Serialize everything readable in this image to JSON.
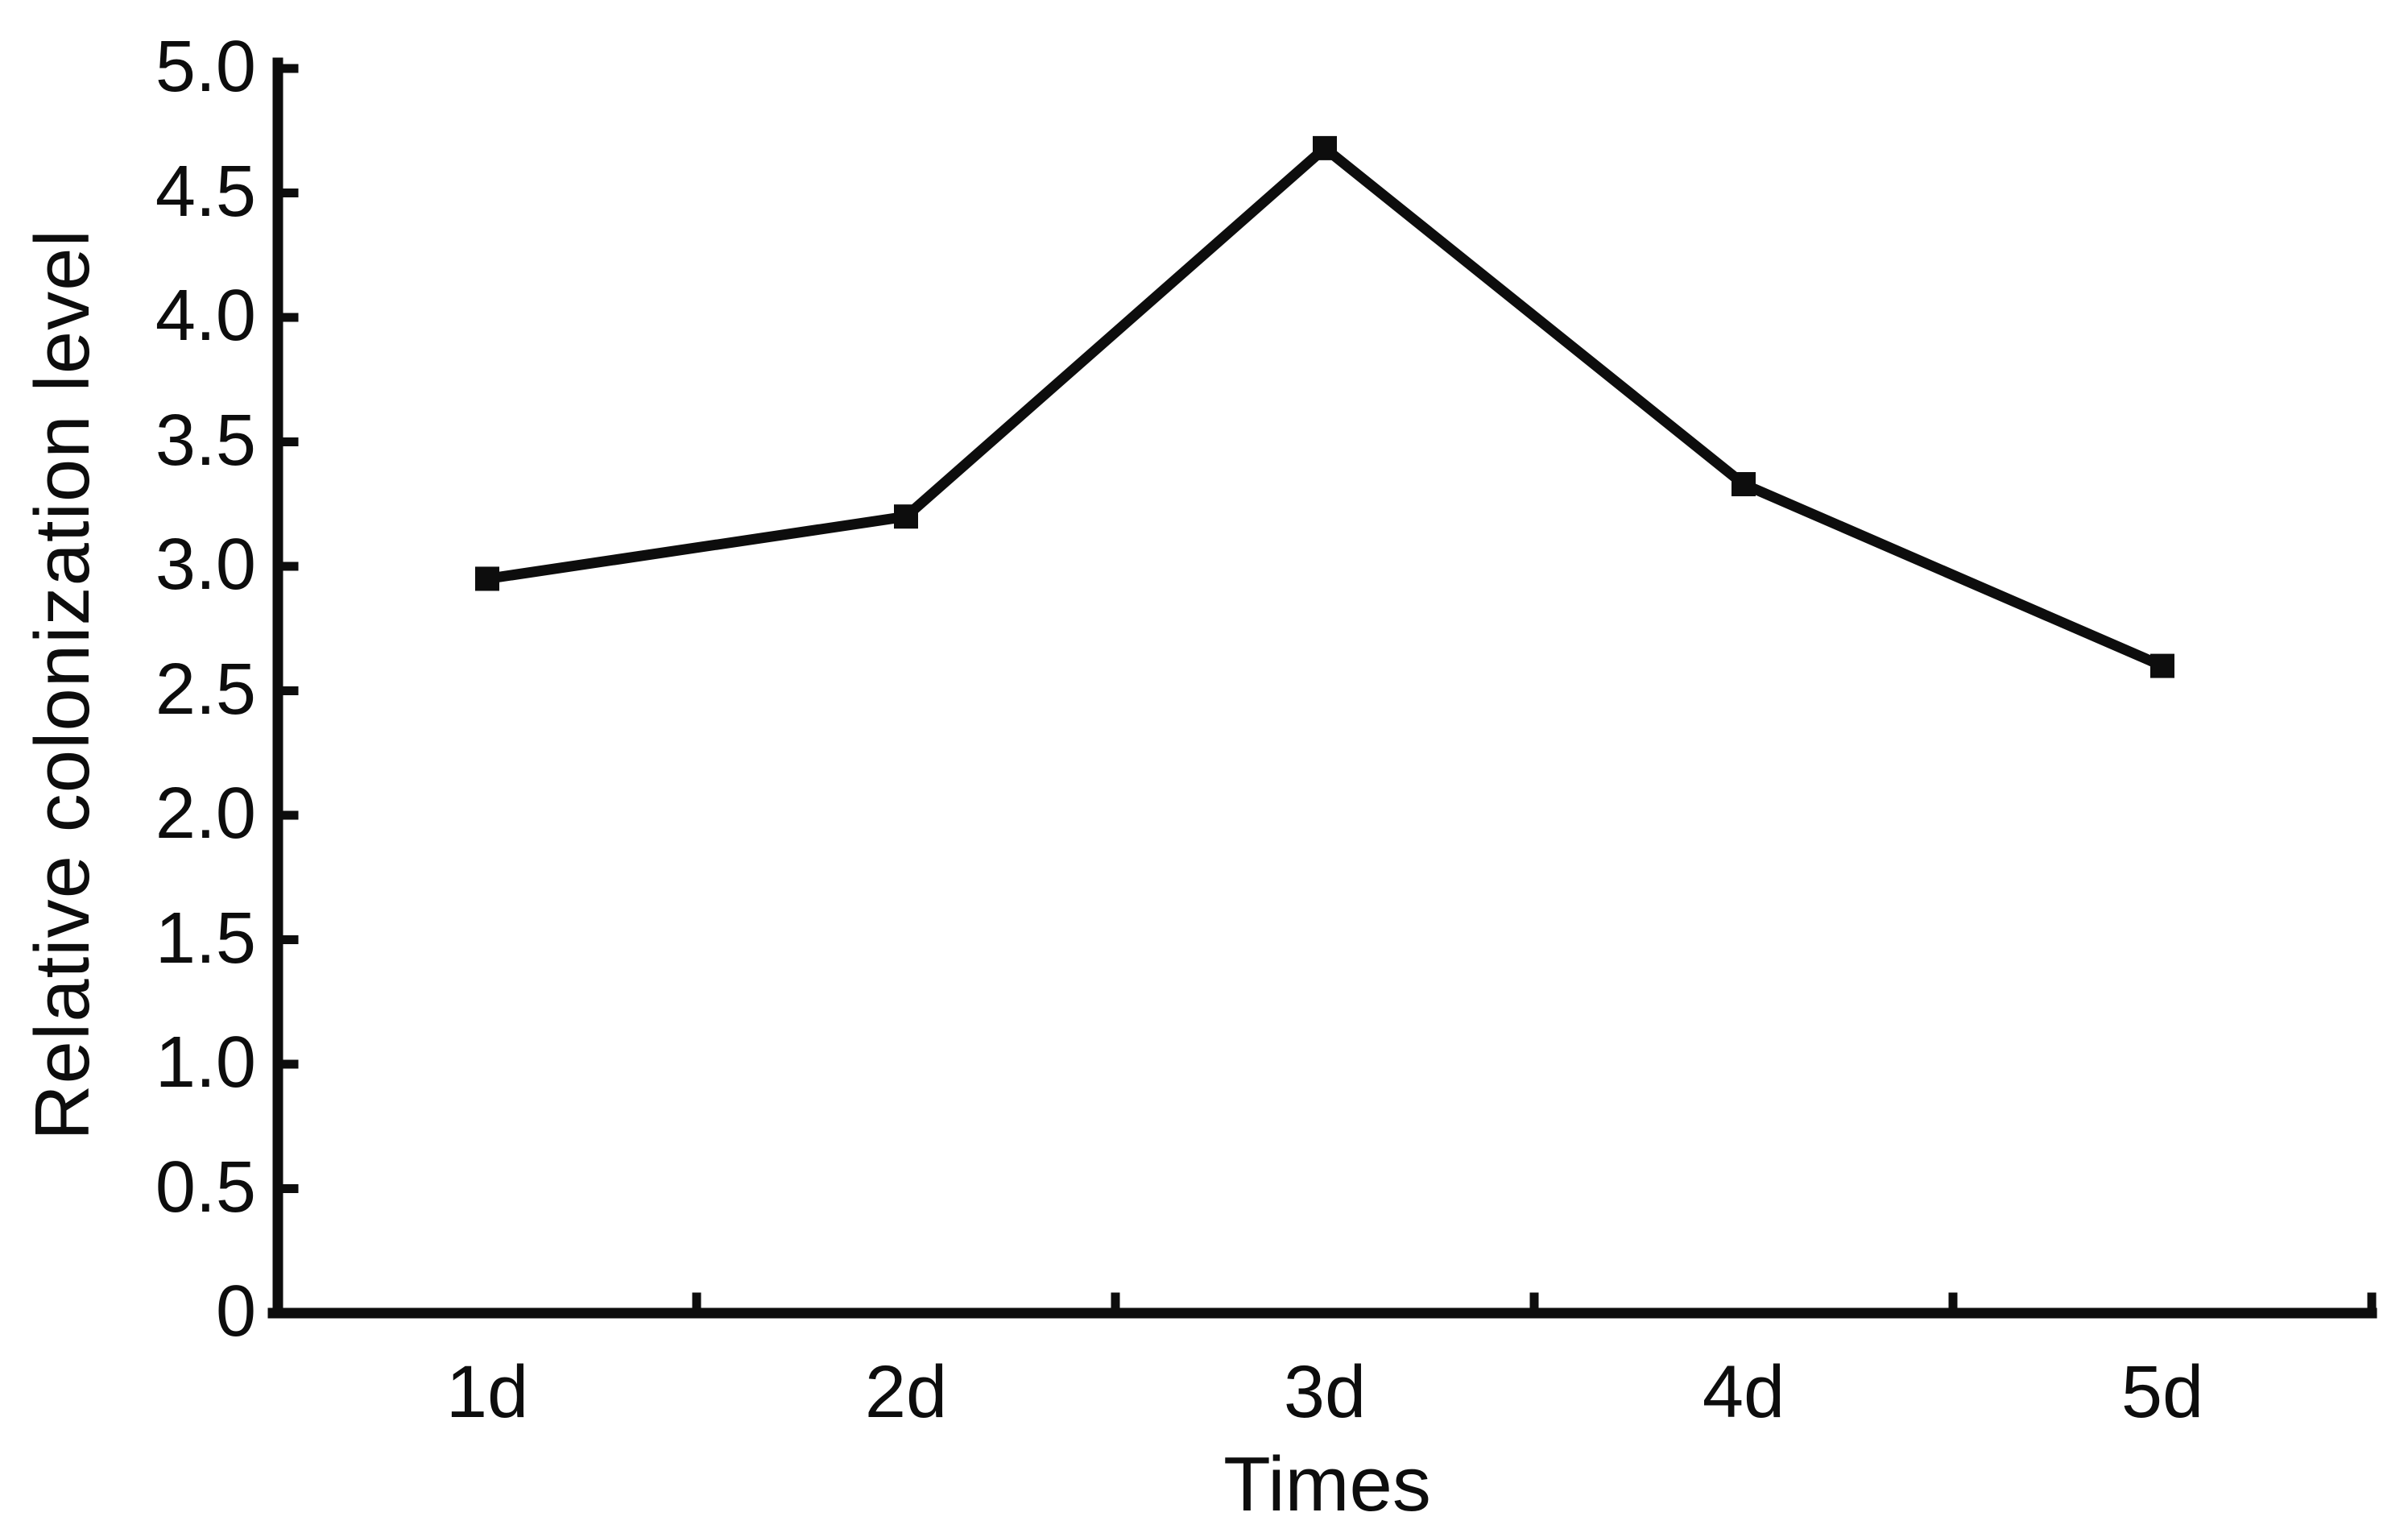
{
  "chart_data": {
    "type": "line",
    "title": "",
    "xlabel": "Times",
    "ylabel": "Relative colonization level",
    "categories": [
      "1d",
      "2d",
      "3d",
      "4d",
      "5d"
    ],
    "series": [
      {
        "name": "Relative colonization level",
        "values": [
          2.95,
          3.2,
          4.68,
          3.33,
          2.6
        ]
      }
    ],
    "ylim": [
      0,
      5.0
    ],
    "ytick_values": [
      0,
      0.5,
      1.0,
      1.5,
      2.0,
      2.5,
      3.0,
      3.5,
      4.0,
      4.5,
      5.0
    ],
    "ytick_labels": [
      "0",
      "0.5",
      "1.0",
      "1.5",
      "2.0",
      "2.5",
      "3.0",
      "3.5",
      "4.0",
      "4.5",
      "5.0"
    ],
    "grid": false,
    "legend": "none",
    "marker": "filled-square",
    "line_color": "#0d0d0d",
    "axis_color": "#0d0d0d",
    "background_color": "#ffffff",
    "tick_direction": "in"
  }
}
